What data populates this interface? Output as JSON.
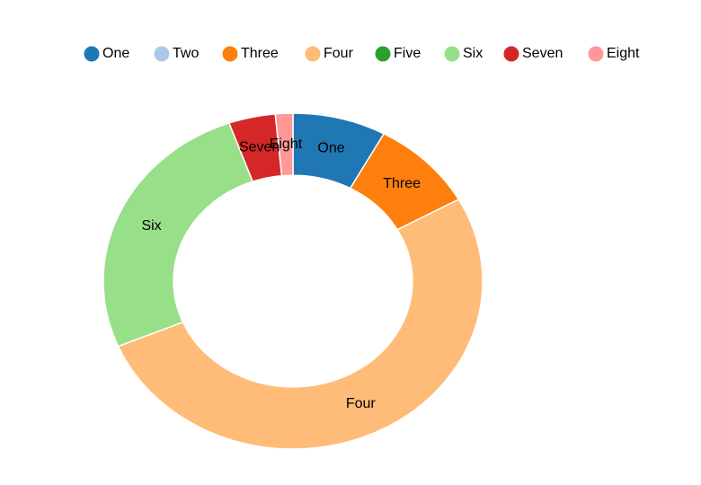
{
  "chart_data": {
    "type": "donut",
    "categories": [
      "One",
      "Two",
      "Three",
      "Four",
      "Five",
      "Six",
      "Seven",
      "Eight"
    ],
    "values": [
      8,
      0,
      9,
      52,
      0,
      26,
      4,
      1.5
    ],
    "colors": [
      "#1f77b4",
      "#aec7e8",
      "#ff7f0e",
      "#ffbb78",
      "#2ca02c",
      "#98df8a",
      "#d62728",
      "#ff9896"
    ],
    "legend": "top"
  }
}
